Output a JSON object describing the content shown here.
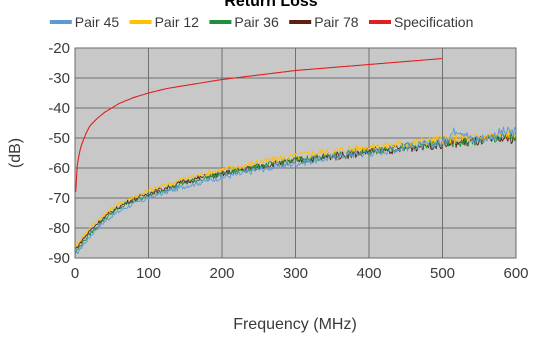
{
  "chart_data": {
    "type": "line",
    "title": "Return Loss",
    "xlabel": "Frequency (MHz)",
    "ylabel": "(dB)",
    "xlim": [
      0,
      600
    ],
    "ylim": [
      -90,
      -20
    ],
    "x_ticks": [
      "0",
      "100",
      "200",
      "300",
      "400",
      "500",
      "600"
    ],
    "y_ticks": [
      "-20",
      "-30",
      "-40",
      "-50",
      "-60",
      "-70",
      "-80",
      "-90"
    ],
    "grid": true,
    "legend_position": "top",
    "plot_background": "#c8c8c8",
    "series": [
      {
        "name": "Pair 45",
        "color": "#5a9bd5",
        "x": [
          1,
          10,
          20,
          30,
          40,
          50,
          60,
          70,
          80,
          90,
          100,
          125,
          150,
          175,
          200,
          225,
          250,
          275,
          300,
          325,
          350,
          375,
          400,
          425,
          450,
          475,
          500,
          510,
          520,
          530,
          540,
          550,
          560,
          570,
          580,
          590,
          600
        ],
        "y": [
          -89,
          -86,
          -83,
          -80,
          -78,
          -76,
          -74.5,
          -73,
          -72,
          -71,
          -70,
          -68,
          -66,
          -64.5,
          -63,
          -62,
          -60.5,
          -59.5,
          -58.5,
          -57.5,
          -56.5,
          -55.5,
          -55,
          -54,
          -53,
          -52.5,
          -51.5,
          -49,
          -47,
          -48,
          -51,
          -50,
          -50,
          -49,
          -48,
          -48,
          -48
        ]
      },
      {
        "name": "Pair 12",
        "color": "#ffc000",
        "x": [
          1,
          10,
          20,
          30,
          40,
          50,
          60,
          70,
          80,
          90,
          100,
          125,
          150,
          175,
          200,
          225,
          250,
          275,
          300,
          325,
          350,
          375,
          400,
          425,
          450,
          475,
          500,
          525,
          550,
          575,
          600
        ],
        "y": [
          -86,
          -83,
          -80,
          -77.5,
          -75.5,
          -73.5,
          -72,
          -70.5,
          -69.5,
          -68.5,
          -67.5,
          -65.5,
          -63.5,
          -62,
          -60.5,
          -59.5,
          -58,
          -57,
          -56,
          -55,
          -54.5,
          -53.5,
          -53,
          -52.5,
          -52,
          -51,
          -50.5,
          -50,
          -50,
          -49,
          -48
        ]
      },
      {
        "name": "Pair 36",
        "color": "#1e8f3c",
        "x": [
          1,
          10,
          20,
          30,
          40,
          50,
          60,
          70,
          80,
          90,
          100,
          125,
          150,
          175,
          200,
          225,
          250,
          275,
          300,
          325,
          350,
          375,
          400,
          425,
          450,
          475,
          500,
          525,
          550,
          575,
          600
        ],
        "y": [
          -88,
          -85,
          -82,
          -79.5,
          -77,
          -75,
          -73.5,
          -72,
          -71,
          -70,
          -69,
          -67,
          -65,
          -63.5,
          -62,
          -61,
          -59.5,
          -58.5,
          -57.5,
          -56.5,
          -56,
          -55,
          -54.5,
          -53.5,
          -53,
          -52.5,
          -52,
          -51.5,
          -51,
          -50,
          -49.5
        ]
      },
      {
        "name": "Pair 78",
        "color": "#5c1f12",
        "x": [
          1,
          10,
          20,
          30,
          40,
          50,
          60,
          70,
          80,
          90,
          100,
          125,
          150,
          175,
          200,
          225,
          250,
          275,
          300,
          325,
          350,
          375,
          400,
          425,
          450,
          475,
          500,
          525,
          550,
          575,
          600
        ],
        "y": [
          -87,
          -84,
          -81,
          -78.5,
          -76.5,
          -74.5,
          -73,
          -71.5,
          -70.5,
          -69.5,
          -68.5,
          -66.5,
          -64.5,
          -63,
          -62,
          -60.5,
          -59.5,
          -58.5,
          -57.5,
          -57,
          -56,
          -55.5,
          -54.5,
          -54,
          -53.5,
          -52.5,
          -52,
          -51.5,
          -51,
          -50.5,
          -50
        ]
      },
      {
        "name": "Specification",
        "color": "#e02020",
        "x": [
          1,
          2,
          4,
          6,
          8,
          10,
          15,
          20,
          30,
          40,
          50,
          60,
          80,
          100,
          125,
          150,
          200,
          250,
          300,
          350,
          400,
          450,
          500
        ],
        "y": [
          -68,
          -61,
          -57.5,
          -55,
          -53,
          -51.5,
          -48.5,
          -46,
          -43.5,
          -41.5,
          -40,
          -38.5,
          -36.5,
          -35,
          -33.5,
          -32.5,
          -30.5,
          -29,
          -27.5,
          -26.5,
          -25.5,
          -24.5,
          -23.5
        ]
      }
    ]
  }
}
